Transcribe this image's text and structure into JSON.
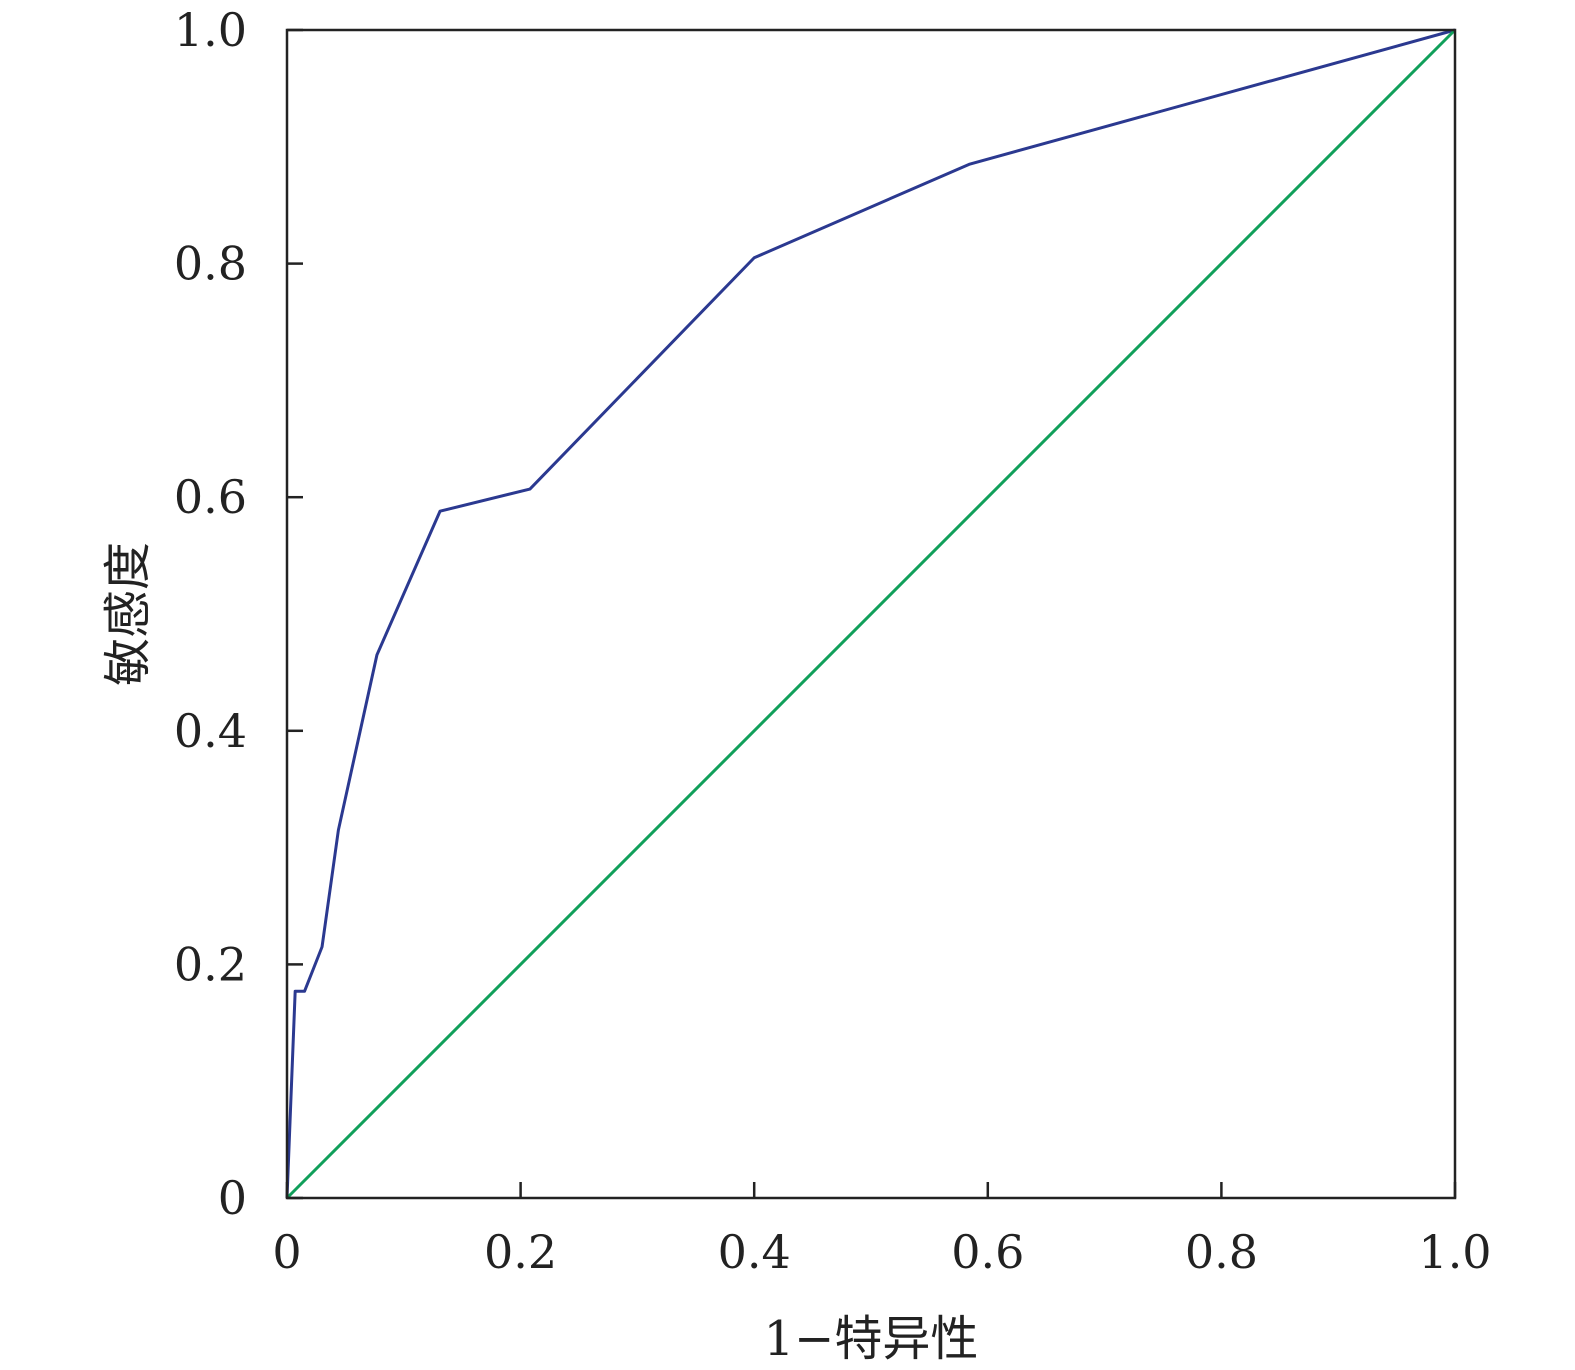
{
  "chart_data": {
    "type": "line",
    "title": "",
    "xlabel": "1−特异性",
    "ylabel": "敏感度",
    "xlim": [
      0,
      1
    ],
    "ylim": [
      0,
      1
    ],
    "grid": false,
    "x_ticks": [
      0,
      0.2,
      0.4,
      0.6,
      0.8,
      1.0
    ],
    "x_tick_labels": [
      "0",
      "0.2",
      "0.4",
      "0.6",
      "0.8",
      "1.0"
    ],
    "y_ticks": [
      0,
      0.2,
      0.4,
      0.6,
      0.8,
      1.0
    ],
    "y_tick_labels": [
      "0",
      "0.2",
      "0.4",
      "0.6",
      "0.8",
      "1.0"
    ],
    "series": [
      {
        "color": "#2b3990",
        "x": [
          0,
          0.007,
          0.015,
          0.03,
          0.044,
          0.077,
          0.131,
          0.208,
          0.4,
          0.584,
          1.0
        ],
        "y": [
          0,
          0.177,
          0.177,
          0.215,
          0.315,
          0.465,
          0.588,
          0.607,
          0.805,
          0.885,
          1.0
        ]
      },
      {
        "color": "#109f5a",
        "x": [
          0,
          1
        ],
        "y": [
          0,
          1
        ]
      }
    ]
  }
}
